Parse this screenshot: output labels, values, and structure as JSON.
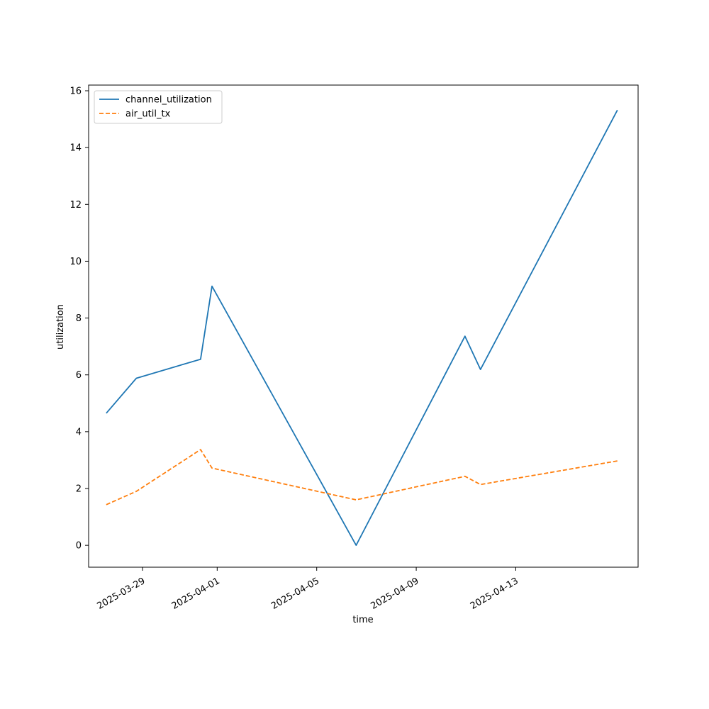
{
  "chart_data": {
    "type": "line",
    "title": "",
    "xlabel": "time",
    "ylabel": "utilization",
    "x_ticks": [
      "2025-03-29",
      "2025-04-01",
      "2025-04-05",
      "2025-04-09",
      "2025-04-13"
    ],
    "y_ticks": [
      0,
      2,
      4,
      6,
      8,
      10,
      12,
      14,
      16
    ],
    "xlim": [
      "2025-03-26 20:00",
      "2025-04-17 22:00"
    ],
    "ylim": [
      -0.77,
      16.2
    ],
    "grid": false,
    "legend": "top-left",
    "series": [
      {
        "name": "channel_utilization",
        "color": "#1f77b4",
        "style": "solid",
        "x": [
          "2025-03-27 13:00",
          "2025-03-28 18:00",
          "2025-03-31 08:00",
          "2025-03-31 19:00",
          "2025-04-06 14:00",
          "2025-04-10 23:00",
          "2025-04-11 14:00",
          "2025-04-17 02:00"
        ],
        "y": [
          4.65,
          5.88,
          6.55,
          9.12,
          0.0,
          7.36,
          6.19,
          15.32
        ]
      },
      {
        "name": "air_util_tx",
        "color": "#ff7f0e",
        "style": "dashed",
        "x": [
          "2025-03-27 13:00",
          "2025-03-28 18:00",
          "2025-03-31 08:00",
          "2025-03-31 19:00",
          "2025-04-06 14:00",
          "2025-04-10 23:00",
          "2025-04-11 14:00",
          "2025-04-17 02:00"
        ],
        "y": [
          1.43,
          1.9,
          3.37,
          2.72,
          1.6,
          2.43,
          2.14,
          2.97
        ]
      }
    ]
  }
}
